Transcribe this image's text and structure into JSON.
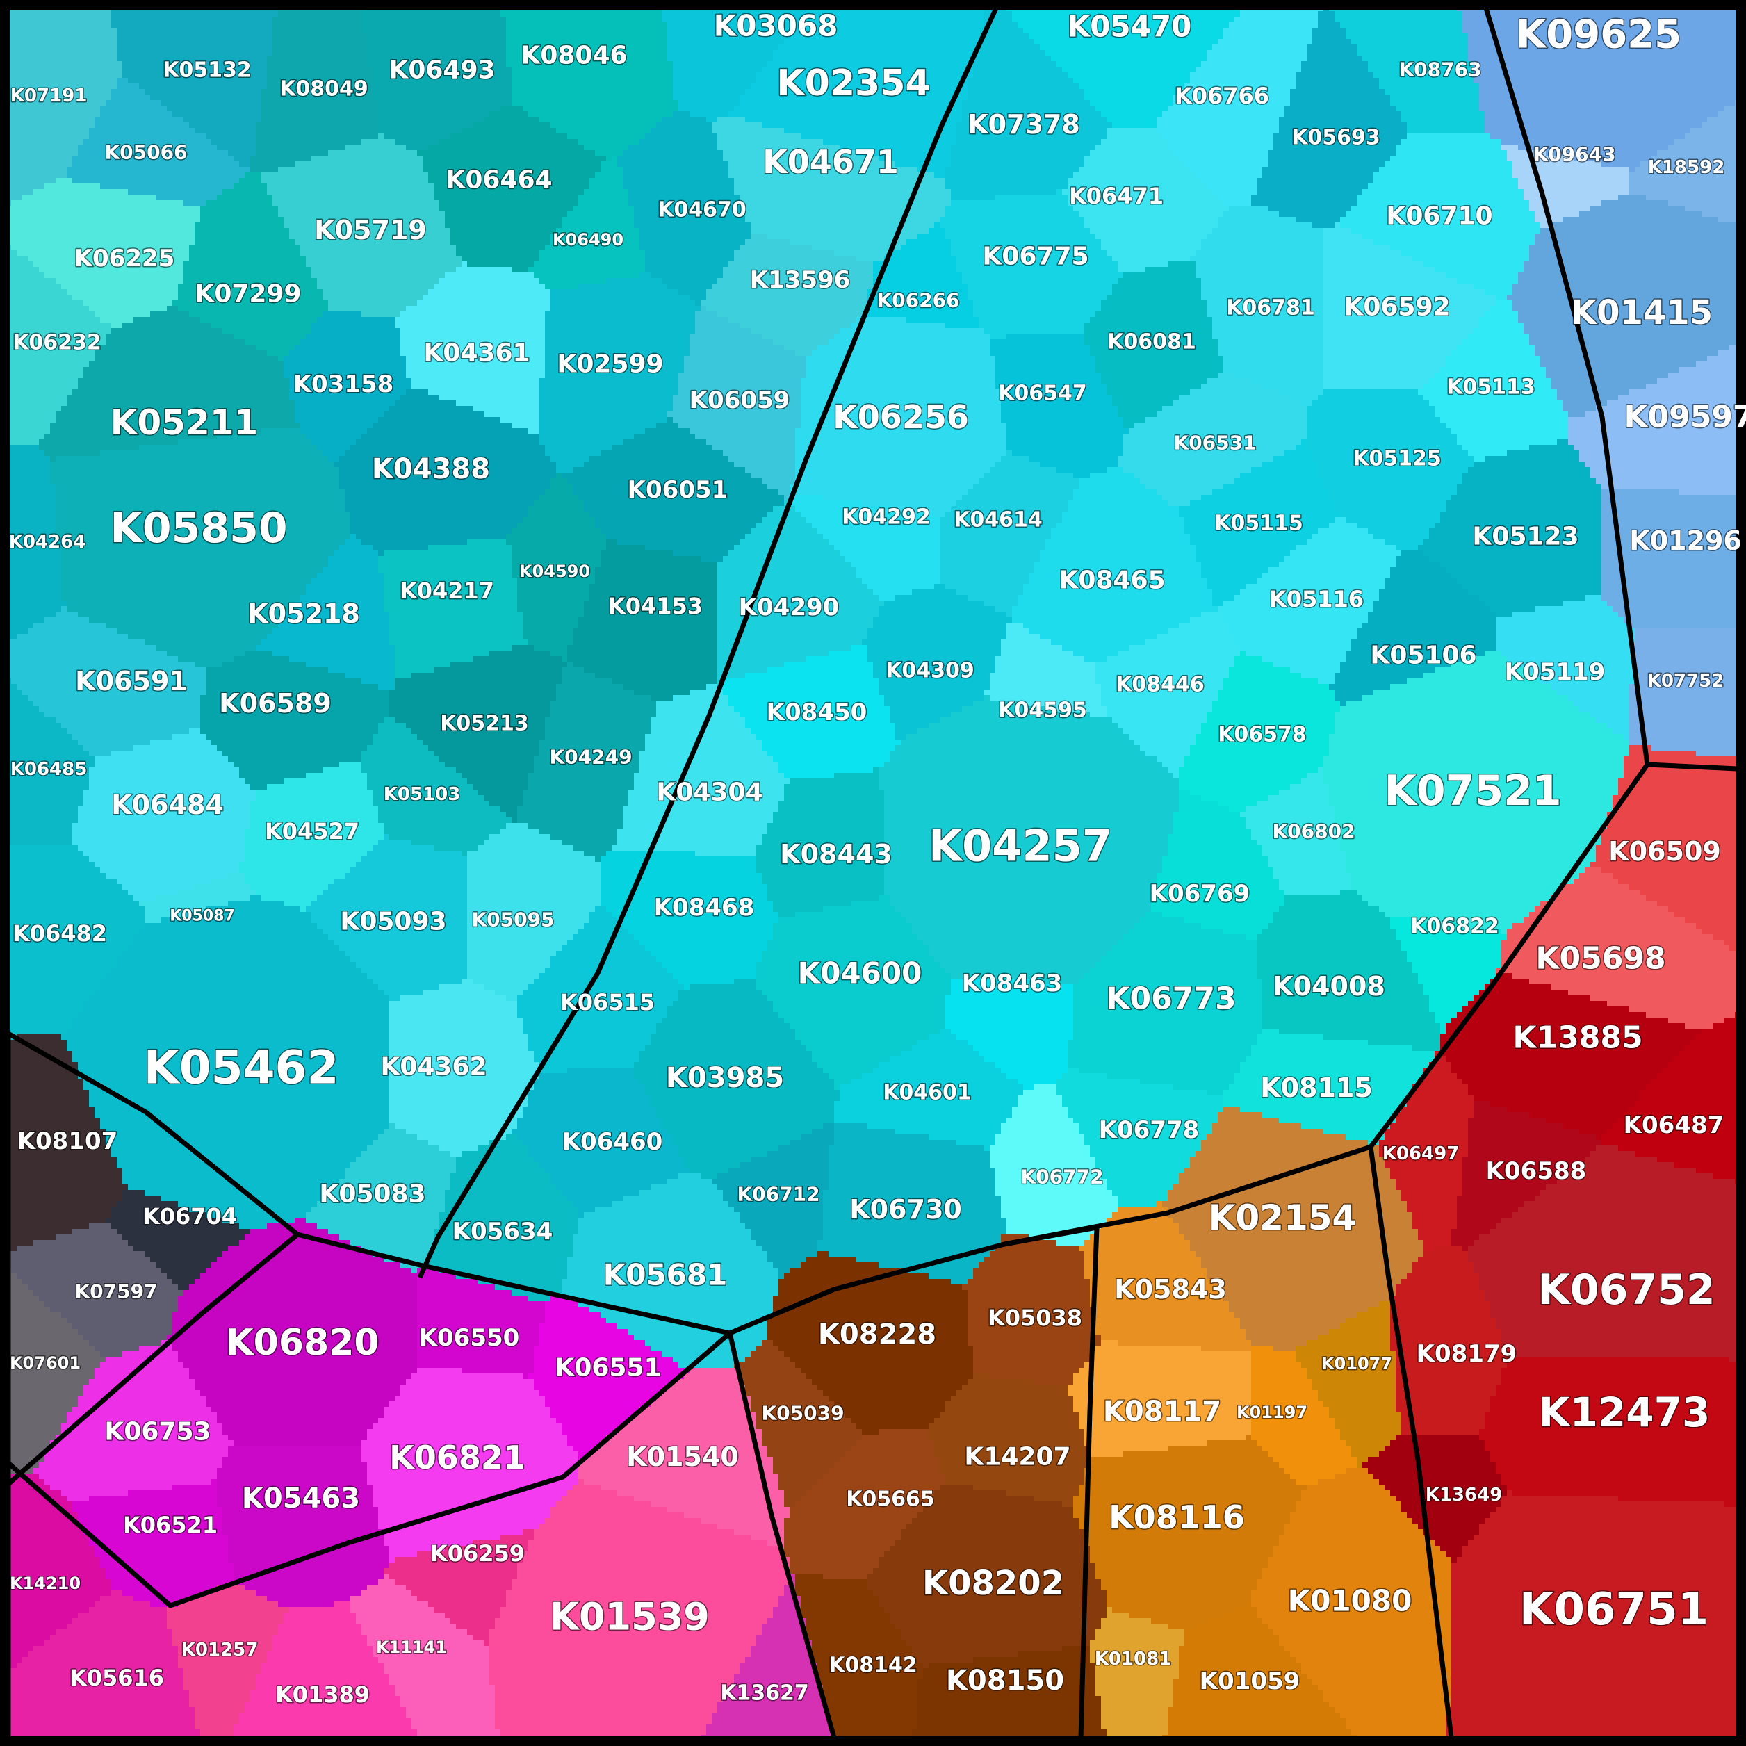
{
  "diagram": {
    "type": "voronoi-treemap",
    "regions": {
      "cyan": {
        "color": "#1fd0df"
      },
      "blue": {
        "color": "#76b8ec"
      },
      "red": {
        "color": "#c4161d"
      },
      "orange": {
        "color": "#e08a1c"
      },
      "brown": {
        "color": "#8a3c0e"
      },
      "magenta": {
        "color": "#dd1ad6"
      },
      "pink": {
        "color": "#f0469a"
      },
      "gray": {
        "color": "#3a3440"
      }
    },
    "cells": [
      {
        "id": "K07191",
        "color": "#3fc8d4"
      },
      {
        "id": "K05132",
        "color": "#13a9be"
      },
      {
        "id": "K08049",
        "color": "#0fa7ae"
      },
      {
        "id": "K06493",
        "color": "#0aa9af"
      },
      {
        "id": "K08046",
        "color": "#05bfb9"
      },
      {
        "id": "K03068",
        "color": "#0bc5db"
      },
      {
        "id": "K05470",
        "color": "#0ad9e6"
      },
      {
        "id": "K02354",
        "color": "#0dcbe0"
      },
      {
        "id": "K08763",
        "color": "#10cfdd"
      },
      {
        "id": "K09625",
        "color": "#6ca6e6"
      },
      {
        "id": "K05066",
        "color": "#25b7cf"
      },
      {
        "id": "K06464",
        "color": "#06a8a6"
      },
      {
        "id": "K04671",
        "color": "#3dd7e4"
      },
      {
        "id": "K04670",
        "color": "#07b3c5"
      },
      {
        "id": "K07378",
        "color": "#0dc6d9"
      },
      {
        "id": "K06766",
        "color": "#3be5f7"
      },
      {
        "id": "K05693",
        "color": "#0aaec7"
      },
      {
        "id": "K09643",
        "color": "#a8d4fa"
      },
      {
        "id": "K18592",
        "color": "#7ab4e8"
      },
      {
        "id": "K06225",
        "color": "#52e8dd"
      },
      {
        "id": "K05719",
        "color": "#37cfd2"
      },
      {
        "id": "K06490",
        "color": "#06c3c0"
      },
      {
        "id": "K06471",
        "color": "#3ce3f0"
      },
      {
        "id": "K06710",
        "color": "#2ee5f4"
      },
      {
        "id": "K07299",
        "color": "#07b7b0"
      },
      {
        "id": "K13596",
        "color": "#3dcfdb"
      },
      {
        "id": "K06775",
        "color": "#16d4e4"
      },
      {
        "id": "K06266",
        "color": "#06cfe3"
      },
      {
        "id": "K06232",
        "color": "#39d6d4"
      },
      {
        "id": "K04361",
        "color": "#4feaf7"
      },
      {
        "id": "K03158",
        "color": "#06aec6"
      },
      {
        "id": "K02599",
        "color": "#0bbcce"
      },
      {
        "id": "K06081",
        "color": "#07bdc4"
      },
      {
        "id": "K06781",
        "color": "#31dcec"
      },
      {
        "id": "K06592",
        "color": "#3fe3f4"
      },
      {
        "id": "K01415",
        "color": "#63a6dd"
      },
      {
        "id": "K05211",
        "color": "#0da8aa"
      },
      {
        "id": "K06059",
        "color": "#3ac7dc"
      },
      {
        "id": "K06256",
        "color": "#2fdcef"
      },
      {
        "id": "K06547",
        "color": "#07c3da"
      },
      {
        "id": "K05113",
        "color": "#30eaf6"
      },
      {
        "id": "K09597",
        "color": "#8cbef5"
      },
      {
        "id": "K04388",
        "color": "#05a1b4"
      },
      {
        "id": "K06051",
        "color": "#06a5b4"
      },
      {
        "id": "K06531",
        "color": "#35dbeb"
      },
      {
        "id": "K05125",
        "color": "#11cee0"
      },
      {
        "id": "K05850",
        "color": "#0cb0b6"
      },
      {
        "id": "K04264",
        "color": "#0ab3c4"
      },
      {
        "id": "K04292",
        "color": "#25e0f1"
      },
      {
        "id": "K04614",
        "color": "#1cd0e2"
      },
      {
        "id": "K05115",
        "color": "#0dd1e2"
      },
      {
        "id": "K05123",
        "color": "#06b3c4"
      },
      {
        "id": "K01296",
        "color": "#6daee7"
      },
      {
        "id": "K04217",
        "color": "#0cc3c4"
      },
      {
        "id": "K04590",
        "color": "#05aaa9"
      },
      {
        "id": "K04153",
        "color": "#059c9f"
      },
      {
        "id": "K04290",
        "color": "#1bcfdc"
      },
      {
        "id": "K08465",
        "color": "#1fdced"
      },
      {
        "id": "K05116",
        "color": "#36e5f4"
      },
      {
        "id": "K05218",
        "color": "#07b8cf"
      },
      {
        "id": "K06591",
        "color": "#26c5d7"
      },
      {
        "id": "K06589",
        "color": "#06a4ab"
      },
      {
        "id": "K05106",
        "color": "#06aec2"
      },
      {
        "id": "K05119",
        "color": "#35def2"
      },
      {
        "id": "K07752",
        "color": "#7ab0ea"
      },
      {
        "id": "K04309",
        "color": "#0ac4d6"
      },
      {
        "id": "K04595",
        "color": "#4ceaf6"
      },
      {
        "id": "K08446",
        "color": "#37e6f2"
      },
      {
        "id": "K08450",
        "color": "#0ce3f1"
      },
      {
        "id": "K06578",
        "color": "#0be6dc"
      },
      {
        "id": "K05213",
        "color": "#05989c"
      },
      {
        "id": "K04249",
        "color": "#0aa8ac"
      },
      {
        "id": "K06485",
        "color": "#0cb7c6"
      },
      {
        "id": "K07521",
        "color": "#2ce8e0"
      },
      {
        "id": "K04304",
        "color": "#3de4f0"
      },
      {
        "id": "K06484",
        "color": "#3ee0f2"
      },
      {
        "id": "K05103",
        "color": "#0dbcc1"
      },
      {
        "id": "K04527",
        "color": "#2ee5e8"
      },
      {
        "id": "K06509",
        "color": "#ea4548"
      },
      {
        "id": "K04257",
        "color": "#16cbd2"
      },
      {
        "id": "K06802",
        "color": "#35e7ea"
      },
      {
        "id": "K08443",
        "color": "#09c0c4"
      },
      {
        "id": "K06769",
        "color": "#09dfd9"
      },
      {
        "id": "K05087",
        "color": "#3ee1ea"
      },
      {
        "id": "K06482",
        "color": "#0cbfcc"
      },
      {
        "id": "K05093",
        "color": "#16c9da"
      },
      {
        "id": "K05095",
        "color": "#3de1ec"
      },
      {
        "id": "K08468",
        "color": "#06d3e0"
      },
      {
        "id": "K06822",
        "color": "#06e8de"
      },
      {
        "id": "K05698",
        "color": "#f05a5e"
      },
      {
        "id": "K04600",
        "color": "#0acccf"
      },
      {
        "id": "K08463",
        "color": "#06e2f0"
      },
      {
        "id": "K06515",
        "color": "#0cc7d8"
      },
      {
        "id": "K06773",
        "color": "#0bd3d3"
      },
      {
        "id": "K04008",
        "color": "#08c6c1"
      },
      {
        "id": "K13885",
        "color": "#b6000f"
      },
      {
        "id": "K05462",
        "color": "#0bbccc"
      },
      {
        "id": "K04362",
        "color": "#4ae7f3"
      },
      {
        "id": "K03985",
        "color": "#07b9c3"
      },
      {
        "id": "K08115",
        "color": "#12e2dc"
      },
      {
        "id": "K06487",
        "color": "#c0000f"
      },
      {
        "id": "K08107",
        "color": "#3b2d30"
      },
      {
        "id": "K04601",
        "color": "#0bd1de"
      },
      {
        "id": "K06778",
        "color": "#11dbdc"
      },
      {
        "id": "K06497",
        "color": "#cc1a20"
      },
      {
        "id": "K06460",
        "color": "#0ab7cc"
      },
      {
        "id": "K06712",
        "color": "#09a8bb"
      },
      {
        "id": "K06588",
        "color": "#b0071a"
      },
      {
        "id": "K06772",
        "color": "#5dfaf9"
      },
      {
        "id": "K05083",
        "color": "#2ccfd8"
      },
      {
        "id": "K06704",
        "color": "#2c3140"
      },
      {
        "id": "K06730",
        "color": "#0ab6c6"
      },
      {
        "id": "K02154",
        "color": "#c98136"
      },
      {
        "id": "K05634",
        "color": "#0cbcc4"
      },
      {
        "id": "K06752",
        "color": "#b81d27"
      },
      {
        "id": "K05681",
        "color": "#22cfde"
      },
      {
        "id": "K07597",
        "color": "#5e5e70"
      },
      {
        "id": "K05843",
        "color": "#e99022"
      },
      {
        "id": "K08228",
        "color": "#7b3200"
      },
      {
        "id": "K05038",
        "color": "#9a4413"
      },
      {
        "id": "K06820",
        "color": "#c605c2"
      },
      {
        "id": "K06550",
        "color": "#d206ce"
      },
      {
        "id": "K06551",
        "color": "#e805e4"
      },
      {
        "id": "K07601",
        "color": "#6a686e"
      },
      {
        "id": "K08179",
        "color": "#c81b1e"
      },
      {
        "id": "K01077",
        "color": "#cd8605"
      },
      {
        "id": "K08117",
        "color": "#f9a535"
      },
      {
        "id": "K01197",
        "color": "#f0900b"
      },
      {
        "id": "K06753",
        "color": "#ee2fe8"
      },
      {
        "id": "K05039",
        "color": "#944414"
      },
      {
        "id": "K12473",
        "color": "#c30713"
      },
      {
        "id": "K01540",
        "color": "#fb5fa8"
      },
      {
        "id": "K06821",
        "color": "#f53bf0"
      },
      {
        "id": "K14207",
        "color": "#954710"
      },
      {
        "id": "K05463",
        "color": "#cb07c8"
      },
      {
        "id": "K05665",
        "color": "#9b4416"
      },
      {
        "id": "K13649",
        "color": "#a3000f"
      },
      {
        "id": "K06521",
        "color": "#d806d3"
      },
      {
        "id": "K08116",
        "color": "#d27b08"
      },
      {
        "id": "K14210",
        "color": "#db0ca2"
      },
      {
        "id": "K06259",
        "color": "#ec2f8a"
      },
      {
        "id": "K08202",
        "color": "#873a0c"
      },
      {
        "id": "K01080",
        "color": "#e2830e"
      },
      {
        "id": "K06751",
        "color": "#c81a21"
      },
      {
        "id": "K01539",
        "color": "#fc4d9c"
      },
      {
        "id": "K01257",
        "color": "#f2428f"
      },
      {
        "id": "K11141",
        "color": "#fb5fba"
      },
      {
        "id": "K08142",
        "color": "#823800"
      },
      {
        "id": "K08150",
        "color": "#7c3500"
      },
      {
        "id": "K01081",
        "color": "#e0a32e"
      },
      {
        "id": "K01059",
        "color": "#d37b05"
      },
      {
        "id": "K05616",
        "color": "#e822a5"
      },
      {
        "id": "K01389",
        "color": "#fb3aae"
      },
      {
        "id": "K13627",
        "color": "#d631b2"
      }
    ]
  }
}
